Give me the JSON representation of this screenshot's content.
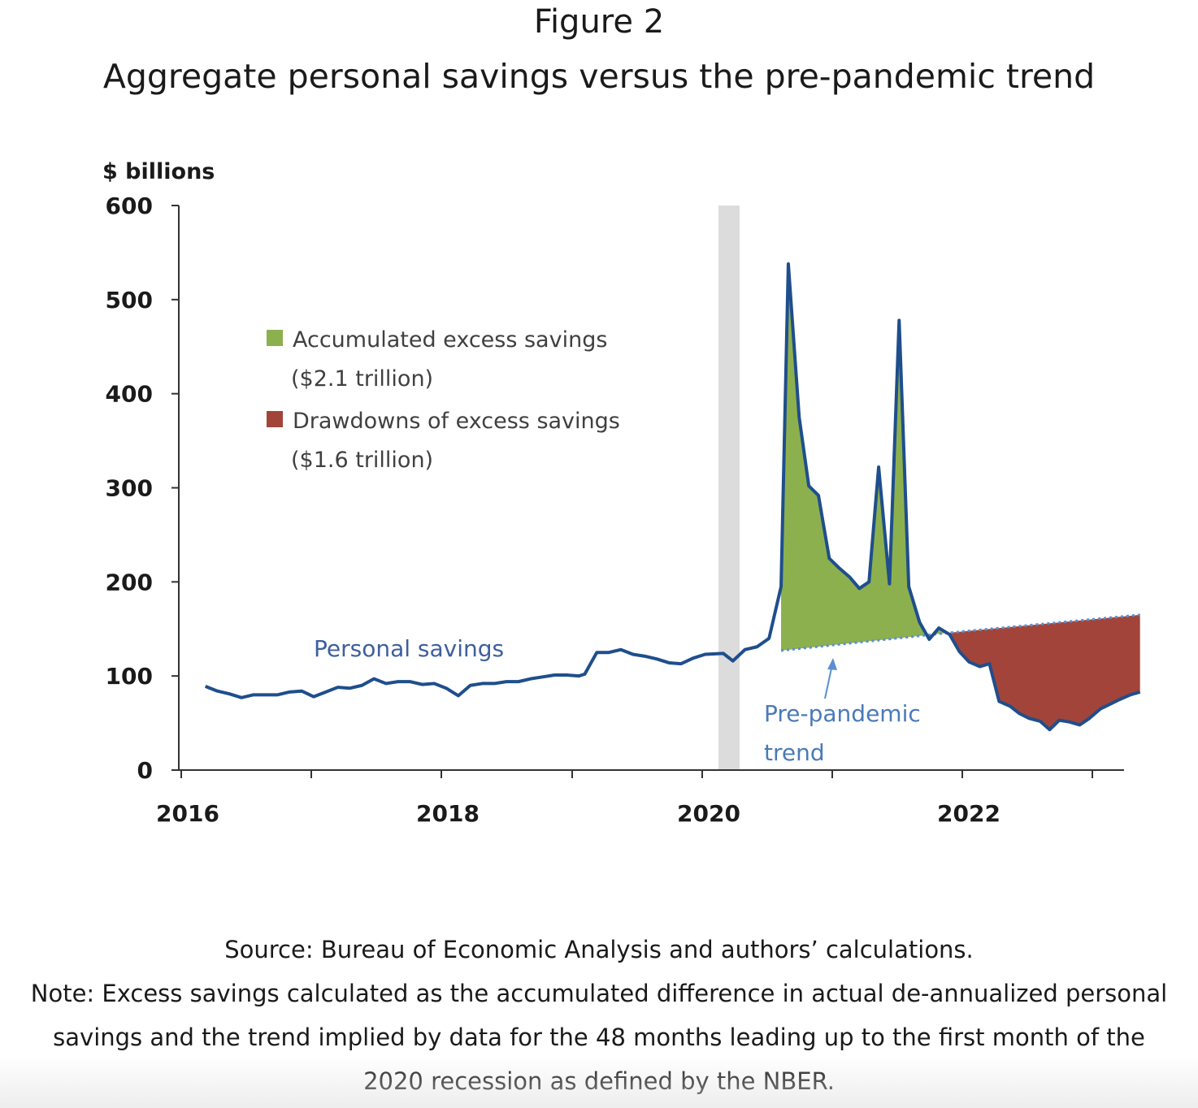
{
  "figure": {
    "label": "Figure 2",
    "title": "Aggregate personal savings versus the pre-pandemic trend"
  },
  "chart_data": {
    "type": "area",
    "ylabel": "$ billions",
    "ylim": [
      0,
      600
    ],
    "yticks": [
      0,
      100,
      200,
      300,
      400,
      500,
      600
    ],
    "xlim": [
      2016,
      2023.3
    ],
    "xticks": [
      2016,
      2018,
      2020,
      2022
    ],
    "x_minor_ticks": [
      2017,
      2019,
      2021,
      2023
    ],
    "recession_shade": [
      2020.13,
      2020.29
    ],
    "series": [
      {
        "name": "Personal savings",
        "color": "#1f4e8c",
        "points": [
          [
            2016.2,
            89
          ],
          [
            2016.3,
            84
          ],
          [
            2016.4,
            81
          ],
          [
            2016.5,
            77
          ],
          [
            2016.6,
            80
          ],
          [
            2016.7,
            80
          ],
          [
            2016.8,
            80
          ],
          [
            2016.9,
            83
          ],
          [
            2017.0,
            84
          ],
          [
            2017.1,
            78
          ],
          [
            2017.2,
            83
          ],
          [
            2017.3,
            88
          ],
          [
            2017.4,
            87
          ],
          [
            2017.5,
            90
          ],
          [
            2017.6,
            97
          ],
          [
            2017.7,
            92
          ],
          [
            2017.8,
            94
          ],
          [
            2017.9,
            94
          ],
          [
            2018.0,
            91
          ],
          [
            2018.1,
            92
          ],
          [
            2018.2,
            87
          ],
          [
            2018.3,
            79
          ],
          [
            2018.4,
            90
          ],
          [
            2018.5,
            92
          ],
          [
            2018.6,
            92
          ],
          [
            2018.7,
            94
          ],
          [
            2018.8,
            94
          ],
          [
            2018.9,
            97
          ],
          [
            2019.0,
            99
          ],
          [
            2019.1,
            101
          ],
          [
            2019.2,
            101
          ],
          [
            2019.3,
            100
          ],
          [
            2019.35,
            102
          ],
          [
            2019.45,
            125
          ],
          [
            2019.55,
            125
          ],
          [
            2019.65,
            128
          ],
          [
            2019.75,
            123
          ],
          [
            2019.85,
            121
          ],
          [
            2019.95,
            118
          ],
          [
            2020.05,
            114
          ],
          [
            2020.15,
            113
          ],
          [
            2020.25,
            119
          ],
          [
            2020.35,
            123
          ],
          [
            2020.5,
            124
          ],
          [
            2020.58,
            116
          ],
          [
            2020.68,
            128
          ],
          [
            2020.78,
            131
          ],
          [
            2020.88,
            140
          ],
          [
            2020.98,
            195
          ],
          [
            2021.04,
            538
          ],
          [
            2021.13,
            375
          ],
          [
            2021.21,
            302
          ],
          [
            2021.29,
            292
          ],
          [
            2021.38,
            225
          ],
          [
            2021.46,
            215
          ],
          [
            2021.55,
            205
          ],
          [
            2021.63,
            193
          ],
          [
            2021.71,
            200
          ],
          [
            2021.79,
            322
          ],
          [
            2021.88,
            198
          ],
          [
            2021.96,
            478
          ],
          [
            2022.04,
            195
          ],
          [
            2022.13,
            157
          ],
          [
            2022.21,
            139
          ],
          [
            2022.29,
            151
          ],
          [
            2022.38,
            144
          ],
          [
            2022.46,
            126
          ],
          [
            2022.54,
            115
          ],
          [
            2022.63,
            110
          ],
          [
            2022.71,
            113
          ],
          [
            2022.79,
            73
          ],
          [
            2022.88,
            68
          ],
          [
            2022.96,
            60
          ],
          [
            2023.04,
            55
          ],
          [
            2023.13,
            52
          ],
          [
            2023.21,
            43
          ],
          [
            2023.29,
            53
          ],
          [
            2023.38,
            51
          ],
          [
            2023.46,
            48
          ],
          [
            2023.54,
            55
          ],
          [
            2023.63,
            65
          ],
          [
            2023.71,
            70
          ],
          [
            2023.79,
            75
          ],
          [
            2023.88,
            80
          ],
          [
            2023.96,
            83
          ]
        ]
      },
      {
        "name": "Pre-pandemic trend",
        "color": "#5b8fd1",
        "style": "dotted",
        "points": [
          [
            2020.98,
            127
          ],
          [
            2022.38,
            146
          ],
          [
            2023.96,
            165
          ]
        ]
      }
    ],
    "areas": [
      {
        "name": "Accumulated excess savings",
        "amount": "($2.1 trillion)",
        "color": "#8db04e"
      },
      {
        "name": "Drawdowns of excess savings",
        "amount": "($1.6 trillion)",
        "color": "#a3443a"
      }
    ],
    "annotations": {
      "personal_savings_label": "Personal savings",
      "trend_label_line1": "Pre-pandemic",
      "trend_label_line2": "trend"
    }
  },
  "axis": {
    "y_tick_labels": [
      "0",
      "100",
      "200",
      "300",
      "400",
      "500",
      "600"
    ],
    "x_tick_labels": [
      "2016",
      "2018",
      "2020",
      "2022"
    ]
  },
  "footer": {
    "source": "Source: Bureau of Economic Analysis and authors’ calculations.",
    "note": "Note: Excess savings calculated as the accumulated difference in actual de-annualized personal savings and the trend implied by data for the 48 months leading up to the first month of the 2020 recession as defined by the NBER."
  }
}
